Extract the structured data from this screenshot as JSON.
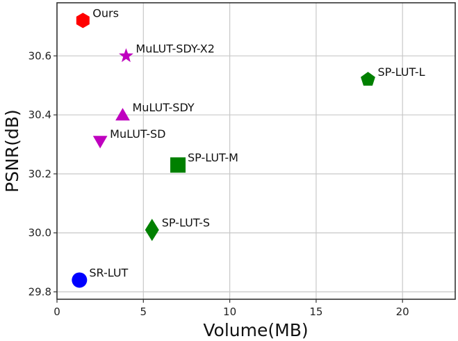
{
  "chart_data": {
    "type": "scatter",
    "title": "",
    "xlabel": "Volume(MB)",
    "ylabel": "PSNR(dB)",
    "xlim": [
      0,
      23.05
    ],
    "ylim": [
      29.775,
      30.78
    ],
    "xticks": [
      0,
      5,
      10,
      15,
      20
    ],
    "xtick_labels": [
      "0",
      "5",
      "10",
      "15",
      "20"
    ],
    "yticks": [
      29.8,
      30.0,
      30.2,
      30.4,
      30.6
    ],
    "ytick_labels": [
      "29.8",
      "30.0",
      "30.2",
      "30.4",
      "30.6"
    ],
    "grid": true,
    "legend": null,
    "points": [
      {
        "label": "Ours",
        "x": 1.5,
        "y": 30.72,
        "marker": "hexagon",
        "color": "#ff0000"
      },
      {
        "label": "MuLUT-SDY-X2",
        "x": 4.0,
        "y": 30.6,
        "marker": "star",
        "color": "#bf00bf"
      },
      {
        "label": "SP-LUT-L",
        "x": 18.0,
        "y": 30.52,
        "marker": "pentagon",
        "color": "#008000"
      },
      {
        "label": "MuLUT-SDY",
        "x": 3.8,
        "y": 30.4,
        "marker": "triangle-up",
        "color": "#bf00bf"
      },
      {
        "label": "MuLUT-SD",
        "x": 2.5,
        "y": 30.31,
        "marker": "triangle-down",
        "color": "#bf00bf"
      },
      {
        "label": "SP-LUT-M",
        "x": 7.0,
        "y": 30.23,
        "marker": "square",
        "color": "#008000"
      },
      {
        "label": "SP-LUT-S",
        "x": 5.5,
        "y": 30.01,
        "marker": "diamond",
        "color": "#008000"
      },
      {
        "label": "SR-LUT",
        "x": 1.3,
        "y": 29.84,
        "marker": "circle",
        "color": "#0000ff"
      }
    ]
  },
  "colors": {
    "grid": "#c8c8c8",
    "axis": "#333333"
  }
}
